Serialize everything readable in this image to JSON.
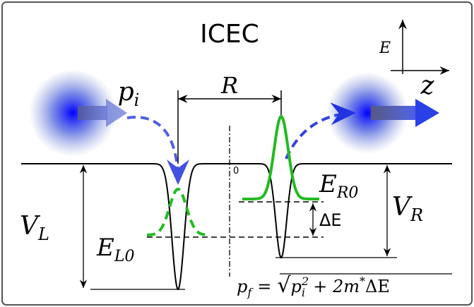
{
  "title": "ICEC",
  "axes": {
    "vertical": "E",
    "horizontal": "z"
  },
  "labels": {
    "p_i": {
      "main": "p",
      "sub": "i"
    },
    "R": "R",
    "origin": "0",
    "E_R0": {
      "main": "E",
      "sub": "R0"
    },
    "delta_E": "ΔE",
    "V_L": {
      "main": "V",
      "sub": "L"
    },
    "V_R": {
      "main": "V",
      "sub": "R"
    },
    "E_L0": {
      "main": "E",
      "sub": "L0"
    }
  },
  "formula": {
    "lhs_main": "p",
    "lhs_sub": "f",
    "equals": "=",
    "root": "√",
    "rad_main": "p",
    "rad_sub": "i",
    "rad_sup": "2",
    "rest": "+ 2m",
    "rest_sup": "*",
    "tail": "ΔE"
  }
}
